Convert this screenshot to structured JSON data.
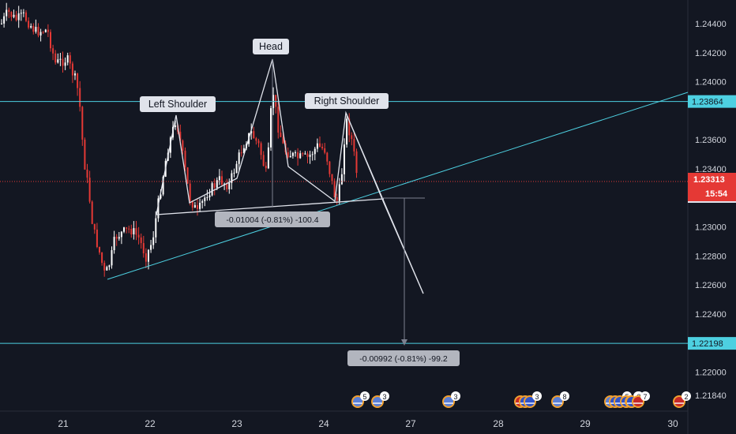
{
  "chart_data": {
    "type": "candlestick",
    "title": "",
    "xlabel": "",
    "ylabel": "",
    "x_ticks": [
      "21",
      "22",
      "23",
      "24",
      "27",
      "28",
      "29",
      "30"
    ],
    "y_ticks": [
      "1.24400",
      "1.24200",
      "1.24000",
      "1.23600",
      "1.23400",
      "1.23000",
      "1.22800",
      "1.22600",
      "1.22400",
      "1.22000",
      "1.21840"
    ],
    "ylim": [
      1.2168,
      1.2461
    ],
    "current_price": "1.23313",
    "countdown": "15:54",
    "horizontal_levels": [
      {
        "name": "resistance",
        "label": "1.23864",
        "value": 1.23864,
        "color": "#4dd0e1"
      },
      {
        "name": "target",
        "label": "1.22198",
        "value": 1.22198,
        "color": "#4dd0e1"
      }
    ],
    "neckline_label_partial": "1.",
    "annotations": {
      "left_shoulder": "Left Shoulder",
      "head": "Head",
      "right_shoulder": "Right Shoulder"
    },
    "measurements": [
      {
        "name": "pattern-height",
        "text": "-0.01004 (-0.81%) -100.4"
      },
      {
        "name": "projected-move",
        "text": "-0.00992 (-0.81%) -99.2"
      }
    ],
    "event_markers": [
      {
        "flags": [
          "us"
        ],
        "count": "5"
      },
      {
        "flags": [
          "us"
        ],
        "count": "3"
      },
      {
        "flags": [
          "us"
        ],
        "count": "3"
      },
      {
        "flags": [
          "uk",
          "eu",
          "eu"
        ],
        "count": "3"
      },
      {
        "flags": [
          "us"
        ],
        "count": "8"
      },
      {
        "flags": [
          "us",
          "eu",
          "eu"
        ],
        "count": "5"
      },
      {
        "flags": [
          "eu",
          "us"
        ],
        "count": "3"
      },
      {
        "flags": [
          "eu"
        ],
        "count": "3"
      },
      {
        "flags": [
          "uk"
        ],
        "count": "7"
      },
      {
        "flags": [
          "uk"
        ],
        "count": "2"
      }
    ],
    "colors": {
      "background": "#131722",
      "up_candle": "#ffffff",
      "down_candle": "#e53935",
      "trendline": "#4dd0e1",
      "pattern": "#e0e3eb",
      "price_tag": "#e53935"
    }
  }
}
